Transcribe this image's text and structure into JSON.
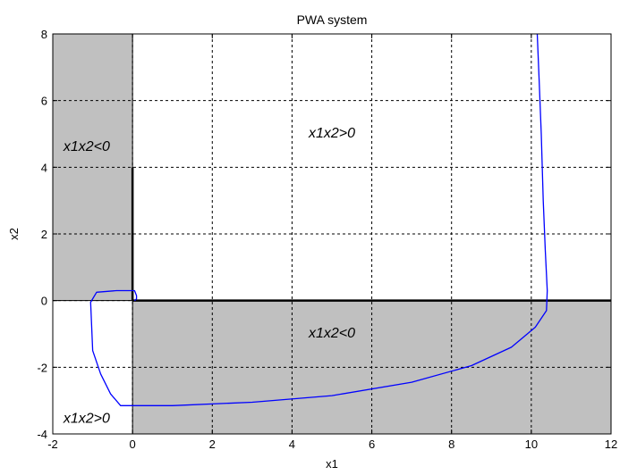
{
  "chart_data": {
    "type": "line",
    "title": "PWA system",
    "xlabel": "x1",
    "ylabel": "x2",
    "xlim": [
      -2,
      12
    ],
    "ylim": [
      -4,
      8
    ],
    "xticks": [
      -2,
      0,
      2,
      4,
      6,
      8,
      10,
      12
    ],
    "yticks": [
      -4,
      -2,
      0,
      2,
      4,
      6,
      8
    ],
    "grid": true,
    "colors": {
      "shaded": "#c0c0c0",
      "trajectory": "#0000ff",
      "axes": "#000000"
    },
    "shaded_regions": [
      {
        "label": "x1x2<0",
        "x": [
          -2,
          0
        ],
        "y": [
          0,
          8
        ]
      },
      {
        "label": "x1x2<0",
        "x": [
          0,
          12
        ],
        "y": [
          -4,
          0
        ]
      }
    ],
    "region_labels": [
      {
        "text": "x1x2<0",
        "x": -1.15,
        "y": 4.6
      },
      {
        "text": "x1x2>0",
        "x": 5.0,
        "y": 5.0
      },
      {
        "text": "x1x2<0",
        "x": 5.0,
        "y": -1.0
      },
      {
        "text": "x1x2>0",
        "x": -1.15,
        "y": -3.55
      }
    ],
    "thick_segments": [
      {
        "x": [
          0,
          0
        ],
        "y": [
          0,
          4
        ]
      },
      {
        "x": [
          0,
          12
        ],
        "y": [
          0,
          0
        ]
      }
    ],
    "series": [
      {
        "x": [
          10.15,
          10.2,
          10.25,
          10.3,
          10.35,
          10.4,
          10.38,
          10.1,
          9.5,
          8.5,
          7.0,
          5.0,
          3.0,
          1.0,
          0.0,
          -0.3,
          -0.55,
          -0.8,
          -1.0,
          -1.05,
          -0.9,
          -0.4,
          0.05,
          0.1,
          0.1,
          0.05
        ],
        "y": [
          8.0,
          6.5,
          5.0,
          3.0,
          1.5,
          0.3,
          -0.3,
          -0.8,
          -1.4,
          -1.95,
          -2.45,
          -2.85,
          -3.05,
          -3.15,
          -3.15,
          -3.15,
          -2.8,
          -2.2,
          -1.5,
          -0.05,
          0.25,
          0.3,
          0.3,
          0.15,
          0.05,
          0.0
        ]
      }
    ]
  }
}
